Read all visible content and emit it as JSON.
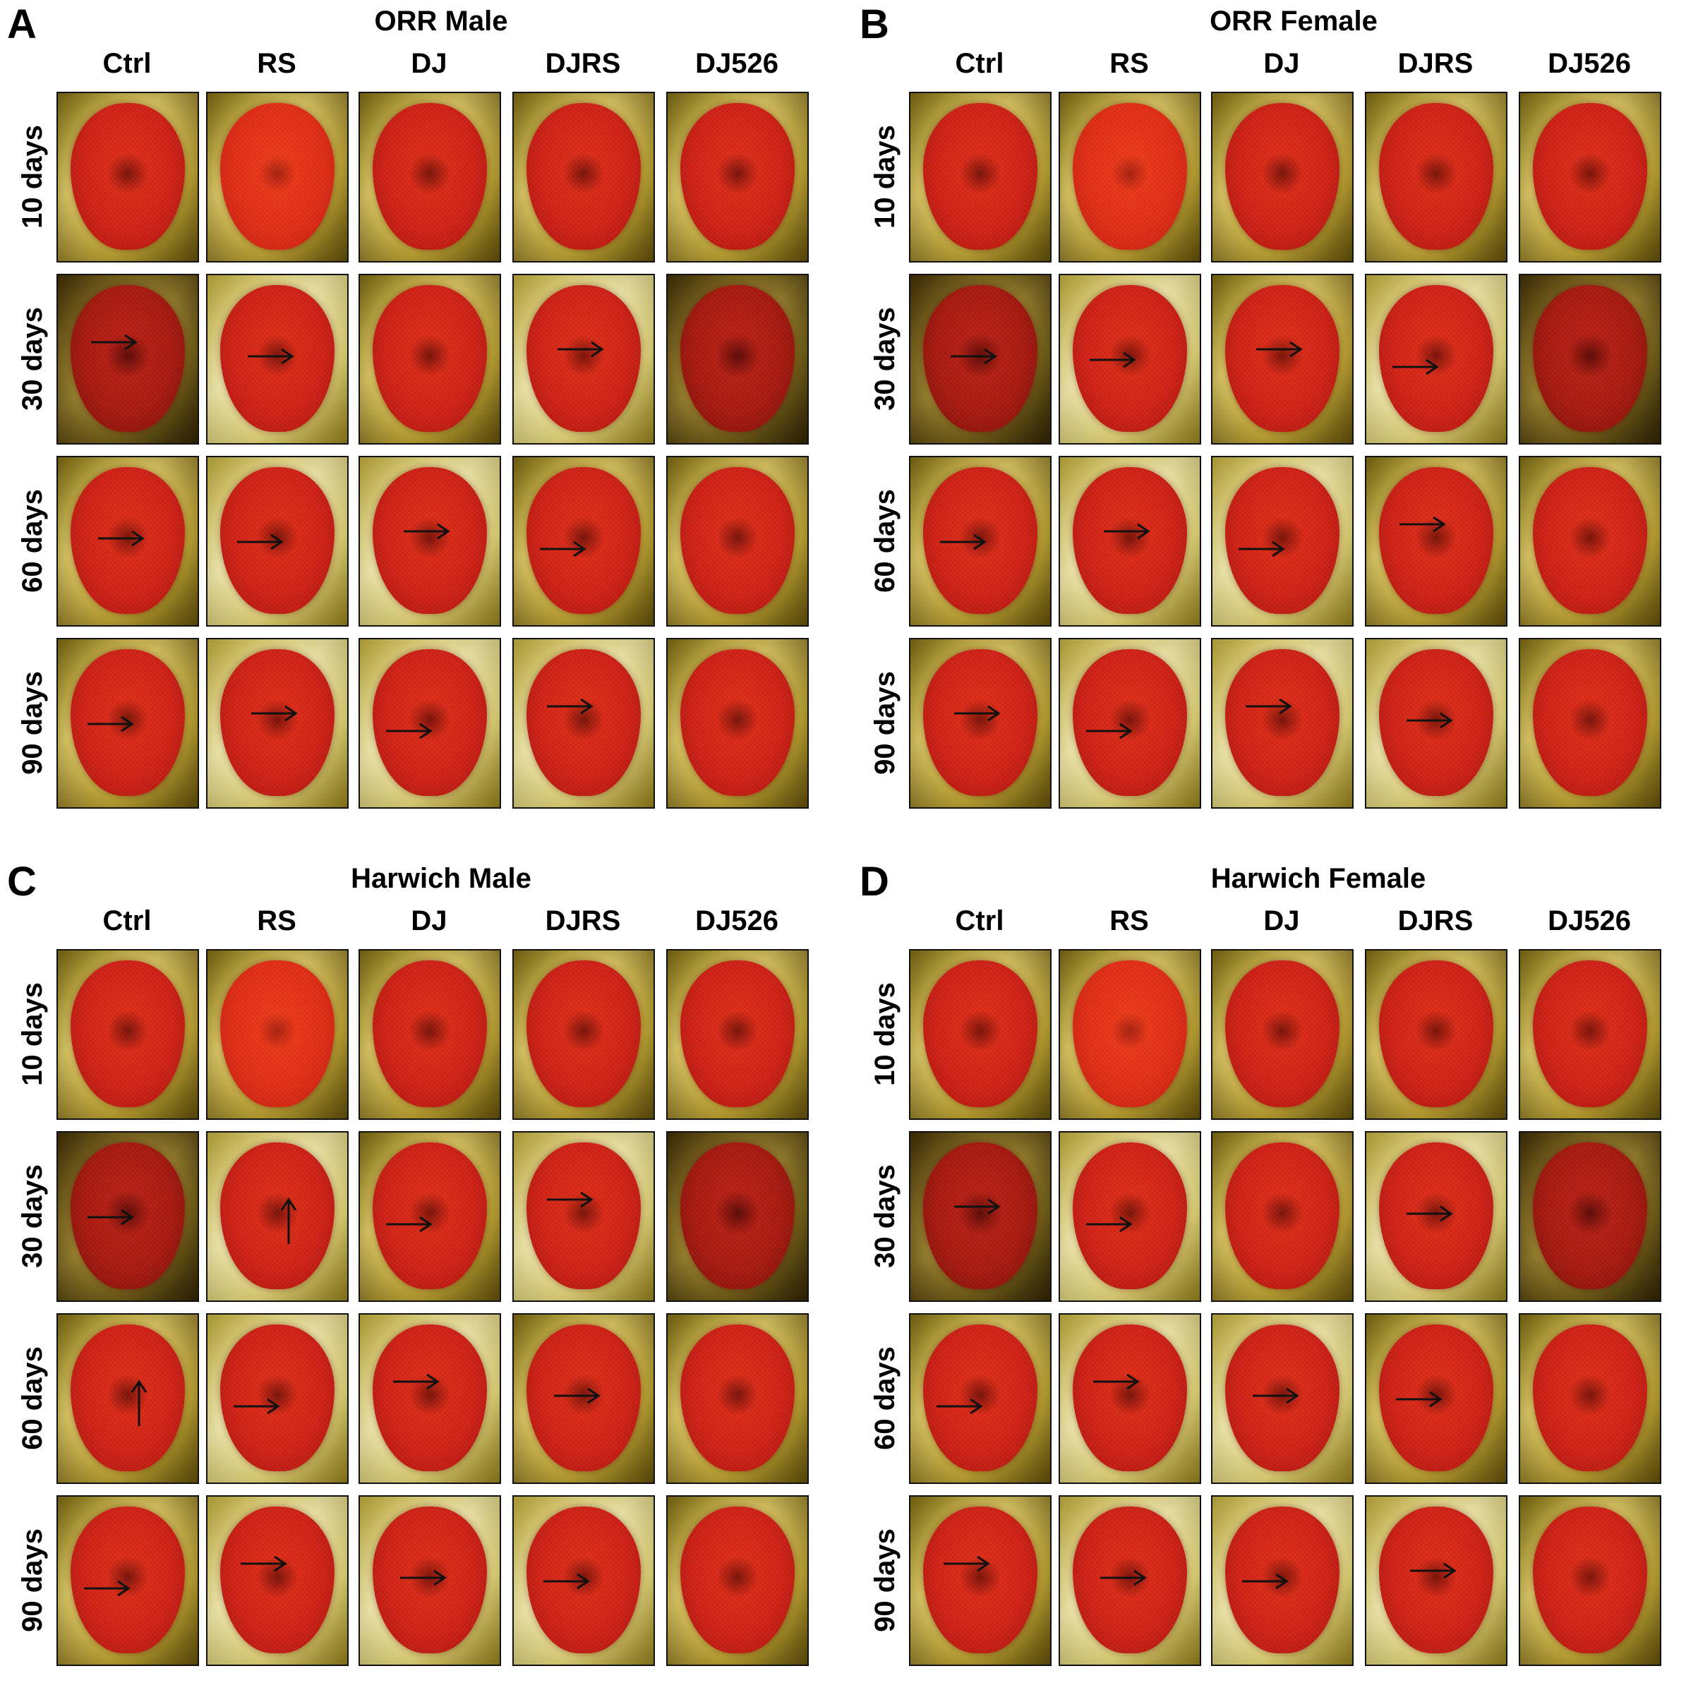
{
  "colors": {
    "eye": "#d8261a",
    "arrow": "#111111",
    "border": "#111111"
  },
  "rows": [
    "10 days",
    "30 days",
    "60 days",
    "90 days"
  ],
  "columns": [
    "Ctrl",
    "RS",
    "DJ",
    "DJRS",
    "DJ526"
  ],
  "panels": [
    {
      "letter": "A",
      "title": "ORR Male",
      "arrows": [
        [
          null,
          null,
          null,
          null,
          null
        ],
        [
          "right",
          "right",
          null,
          "right",
          null
        ],
        [
          "right",
          "right",
          "right",
          "right",
          null
        ],
        [
          "right",
          "right",
          "right",
          "right",
          null
        ]
      ]
    },
    {
      "letter": "B",
      "title": "ORR Female",
      "arrows": [
        [
          null,
          null,
          null,
          null,
          null
        ],
        [
          "right",
          "right",
          "right",
          "right",
          null
        ],
        [
          "right",
          "right",
          "right",
          "right",
          null
        ],
        [
          "right",
          "right",
          "right",
          "right",
          null
        ]
      ]
    },
    {
      "letter": "C",
      "title": "Harwich Male",
      "arrows": [
        [
          null,
          null,
          null,
          null,
          null
        ],
        [
          "right",
          "up",
          "right",
          "right",
          null
        ],
        [
          "up",
          "right",
          "right",
          "right",
          null
        ],
        [
          "right",
          "right",
          "right",
          "right",
          null
        ]
      ]
    },
    {
      "letter": "D",
      "title": "Harwich Female",
      "arrows": [
        [
          null,
          null,
          null,
          null,
          null
        ],
        [
          "right",
          "right",
          null,
          "right",
          null
        ],
        [
          "right",
          "right",
          "right",
          "right",
          null
        ],
        [
          "right",
          "right",
          "right",
          "right",
          null
        ]
      ]
    }
  ]
}
